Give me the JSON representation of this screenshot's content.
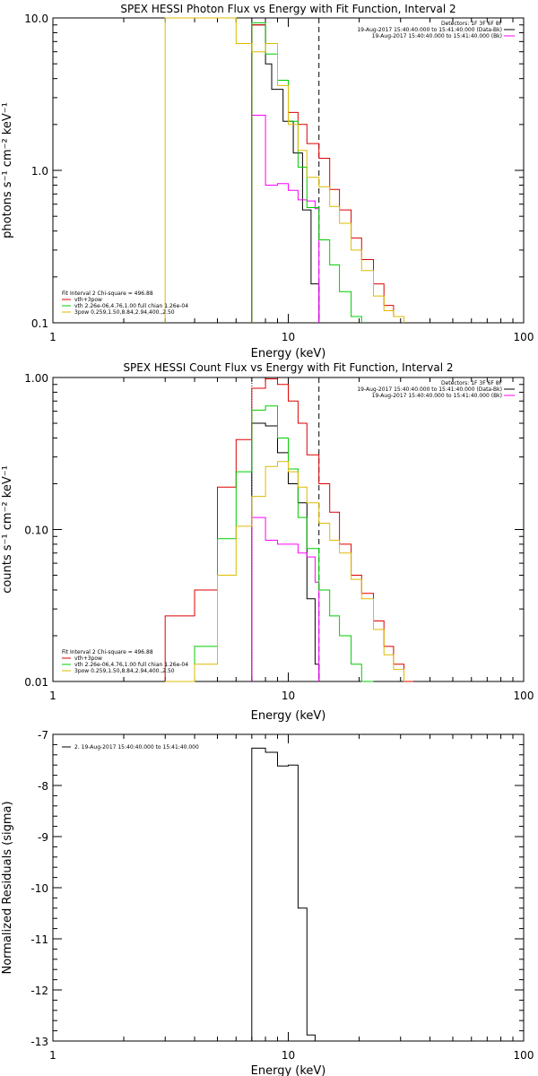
{
  "chart_data": [
    {
      "type": "line",
      "title": "SPEX HESSI Photon Flux vs Energy with Fit Function, Interval 2",
      "xlabel": "Energy (keV)",
      "ylabel": "photons s⁻¹ cm⁻² keV⁻¹",
      "xscale": "log",
      "yscale": "log",
      "xlim": [
        1,
        100
      ],
      "ylim": [
        0.1,
        10.0
      ],
      "xtick_labels": [
        "1",
        "10",
        "100"
      ],
      "ytick_labels": [
        "10.0",
        "1.0",
        "0.1"
      ],
      "ytick_values": [
        10.0,
        1.0,
        0.1
      ],
      "legend_top_right": [
        {
          "text": "Detectors: 1F 3F 6F 8F",
          "color": "#000000",
          "line": false
        },
        {
          "text": "19-Aug-2017 15:40:40.000 to 15:41:40.000 (Data-Bk)",
          "color": "#000000",
          "line": true
        },
        {
          "text": "19-Aug-2017 15:40:40.000 to 15:41:40.000 (Bk)",
          "color": "#ff00ff",
          "line": true
        }
      ],
      "legend_bottom_left": [
        {
          "text": "Fit Interval 2   Chi-square = 496.88",
          "color": "#000000",
          "line": false
        },
        {
          "text": "vth+3pow",
          "color": "#dd0000",
          "line": true
        },
        {
          "text": "vth 2.26e-06,4.76,1.00  full chian 1.26e-04",
          "color": "#00cc00",
          "line": true
        },
        {
          "text": "3pow 0.259,1.50,8.84,2.94,400.,2.50",
          "color": "#ddbb00",
          "line": true
        }
      ],
      "energy_bin_edges": [
        7.0,
        8.0,
        9.0,
        10.0,
        11.0,
        12.0,
        13.5
      ],
      "vlines": [
        {
          "x": 7.0,
          "style": "dotted"
        },
        {
          "x": 13.5,
          "style": "dashed"
        }
      ],
      "series": [
        {
          "name": "Data-Bk",
          "color": "#000000",
          "x": [
            7.0,
            8.0,
            8.5,
            9.5,
            10.5,
            11.5,
            12.5,
            13.5
          ],
          "y": [
            9.0,
            5.0,
            3.4,
            2.1,
            1.3,
            0.55,
            0.18,
            0.07
          ]
        },
        {
          "name": "Bk",
          "color": "#ff00ff",
          "x": [
            7.0,
            8.0,
            9.0,
            10.0,
            11.0,
            12.0,
            13.0,
            13.5
          ],
          "y": [
            2.3,
            0.8,
            0.82,
            0.74,
            0.64,
            0.63,
            0.56,
            0.07
          ]
        },
        {
          "name": "vth+3pow",
          "color": "#dd0000",
          "x": [
            7.0,
            8.0,
            9.0,
            10.0,
            11.0,
            12.0,
            13.5,
            15.0,
            16.5,
            18.5,
            20.5,
            23.0,
            25.5,
            28.0,
            31.0
          ],
          "y": [
            9.0,
            6.8,
            3.9,
            2.4,
            2.0,
            1.5,
            1.2,
            0.75,
            0.55,
            0.36,
            0.26,
            0.18,
            0.13,
            0.11,
            0.1
          ]
        },
        {
          "name": "vth",
          "color": "#00cc00",
          "x": [
            7.0,
            8.0,
            9.0,
            10.0,
            11.0,
            12.0,
            13.5,
            15.0,
            16.5,
            18.5,
            20.5
          ],
          "y": [
            9.3,
            5.8,
            3.9,
            2.1,
            1.05,
            0.57,
            0.35,
            0.24,
            0.16,
            0.11,
            0.1
          ]
        },
        {
          "name": "3pow",
          "color": "#ddbb00",
          "x": [
            3.0,
            4.0,
            5.0,
            6.0,
            7.0,
            8.0,
            9.0,
            10.0,
            11.0,
            12.0,
            13.5,
            15.0,
            16.5,
            18.5,
            20.5,
            23.0,
            25.5,
            28.0,
            31.0
          ],
          "y": [
            10.0,
            10.0,
            10.0,
            6.8,
            6.0,
            6.8,
            3.6,
            2.0,
            1.35,
            0.9,
            0.78,
            0.58,
            0.45,
            0.3,
            0.22,
            0.15,
            0.12,
            0.11,
            0.1
          ]
        }
      ]
    },
    {
      "type": "line",
      "title": "SPEX HESSI Count Flux vs Energy with Fit Function, Interval 2",
      "xlabel": "Energy (keV)",
      "ylabel": "counts s⁻¹ cm⁻² keV⁻¹",
      "xscale": "log",
      "yscale": "log",
      "xlim": [
        1,
        100
      ],
      "ylim": [
        0.01,
        1.0
      ],
      "xtick_labels": [
        "1",
        "10",
        "100"
      ],
      "ytick_labels": [
        "1.00",
        "0.10",
        "0.01"
      ],
      "ytick_values": [
        1.0,
        0.1,
        0.01
      ],
      "legend_top_right": [
        {
          "text": "Detectors: 1F 3F 6F 8F",
          "color": "#000000",
          "line": false
        },
        {
          "text": "19-Aug-2017 15:40:40.000 to 15:41:40.000 (Data-Bk)",
          "color": "#000000",
          "line": true
        },
        {
          "text": "19-Aug-2017 15:40:40.000 to 15:41:40.000 (Bk)",
          "color": "#ff00ff",
          "line": true
        }
      ],
      "legend_bottom_left": [
        {
          "text": "Fit Interval 2   Chi-square = 496.88",
          "color": "#000000",
          "line": false
        },
        {
          "text": "vth+3pow",
          "color": "#dd0000",
          "line": true
        },
        {
          "text": "vth 2.26e-06,4.76,1.00  full chian 1.26e-04",
          "color": "#00cc00",
          "line": true
        },
        {
          "text": "3pow 0.259,1.50,8.84,2.94,400.,2.50",
          "color": "#ddbb00",
          "line": true
        }
      ],
      "vlines": [
        {
          "x": 7.0,
          "style": "dotted"
        },
        {
          "x": 13.5,
          "style": "dashed"
        }
      ],
      "series": [
        {
          "name": "Data-Bk",
          "color": "#000000",
          "x": [
            7.0,
            8.0,
            9.0,
            10.0,
            11.0,
            12.0,
            13.0,
            13.5
          ],
          "y": [
            0.5,
            0.48,
            0.32,
            0.2,
            0.15,
            0.035,
            0.013,
            0.01
          ]
        },
        {
          "name": "Bk",
          "color": "#ff00ff",
          "x": [
            7.0,
            8.0,
            9.0,
            10.0,
            11.0,
            12.0,
            13.0,
            13.5
          ],
          "y": [
            0.12,
            0.085,
            0.08,
            0.08,
            0.07,
            0.066,
            0.045,
            0.01
          ]
        },
        {
          "name": "vth+3pow",
          "color": "#dd0000",
          "x": [
            3.0,
            4.0,
            5.0,
            6.0,
            7.0,
            8.0,
            9.0,
            10.0,
            11.0,
            12.0,
            13.5,
            15.0,
            16.5,
            18.5,
            20.5,
            23.0,
            25.5,
            28.0,
            31.0,
            34.0
          ],
          "y": [
            0.027,
            0.04,
            0.19,
            0.39,
            0.85,
            0.98,
            0.9,
            0.7,
            0.5,
            0.31,
            0.2,
            0.13,
            0.08,
            0.05,
            0.038,
            0.025,
            0.017,
            0.013,
            0.01,
            0.01
          ]
        },
        {
          "name": "vth",
          "color": "#00cc00",
          "x": [
            3.0,
            4.0,
            5.0,
            6.0,
            7.0,
            8.0,
            9.0,
            10.0,
            11.0,
            12.0,
            13.5,
            15.0,
            16.5,
            18.5,
            20.5,
            23.0
          ],
          "y": [
            0.01,
            0.017,
            0.087,
            0.24,
            0.61,
            0.65,
            0.4,
            0.25,
            0.12,
            0.075,
            0.04,
            0.027,
            0.02,
            0.013,
            0.01,
            0.01
          ]
        },
        {
          "name": "3pow",
          "color": "#ddbb00",
          "x": [
            3.0,
            4.0,
            5.0,
            6.0,
            7.0,
            8.0,
            9.0,
            10.0,
            11.0,
            12.0,
            13.5,
            15.0,
            16.5,
            18.5,
            20.5,
            23.0,
            25.5,
            28.0,
            31.0
          ],
          "y": [
            0.01,
            0.013,
            0.05,
            0.105,
            0.165,
            0.26,
            0.28,
            0.24,
            0.19,
            0.15,
            0.11,
            0.085,
            0.07,
            0.047,
            0.035,
            0.022,
            0.015,
            0.012,
            0.01
          ]
        }
      ]
    },
    {
      "type": "line",
      "title": "",
      "xlabel": "Energy (keV)",
      "ylabel": "Normalized Residuals (sigma)",
      "xscale": "log",
      "yscale": "linear",
      "xlim": [
        1,
        100
      ],
      "ylim": [
        -13,
        -7
      ],
      "xtick_labels": [
        "1",
        "10",
        "100"
      ],
      "ytick_labels": [
        "-7",
        "-8",
        "-9",
        "-10",
        "-11",
        "-12",
        "-13"
      ],
      "ytick_values": [
        -7,
        -8,
        -9,
        -10,
        -11,
        -12,
        -13
      ],
      "legend_top_left": [
        {
          "text": "2. 19-Aug-2017 15:40:40.000 to 15:41:40.000",
          "color": "#000000",
          "line": true
        }
      ],
      "series": [
        {
          "name": "2. 19-Aug-2017 15:40:40.000 to 15:41:40.000",
          "color": "#000000",
          "x": [
            7.0,
            8.0,
            9.0,
            10.0,
            11.0,
            12.0,
            13.0
          ],
          "y": [
            -7.27,
            -7.35,
            -7.62,
            -7.6,
            -10.4,
            -12.88,
            -13.0
          ]
        }
      ]
    }
  ]
}
